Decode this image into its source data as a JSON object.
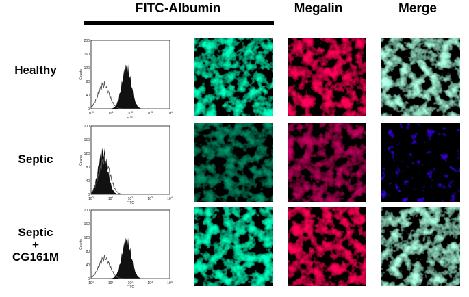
{
  "headers": {
    "fitc_albumin": "FITC-Albumin",
    "megalin": "Megalin",
    "merge": "Merge"
  },
  "rows": [
    {
      "label_lines": [
        "Healthy"
      ]
    },
    {
      "label_lines": [
        "Septic"
      ]
    },
    {
      "label_lines": [
        "Septic",
        "+",
        "CG161M"
      ]
    }
  ],
  "histogram_axes": {
    "y_title": "Counts",
    "x_title": "FITC",
    "y_ticks": [
      "0",
      "40",
      "80",
      "120",
      "160",
      "200"
    ],
    "x_ticks": [
      {
        "base": "10",
        "exp": "0"
      },
      {
        "base": "10",
        "exp": "1"
      },
      {
        "base": "10",
        "exp": "2"
      },
      {
        "base": "10",
        "exp": "3"
      },
      {
        "base": "10",
        "exp": "4"
      }
    ]
  }
}
